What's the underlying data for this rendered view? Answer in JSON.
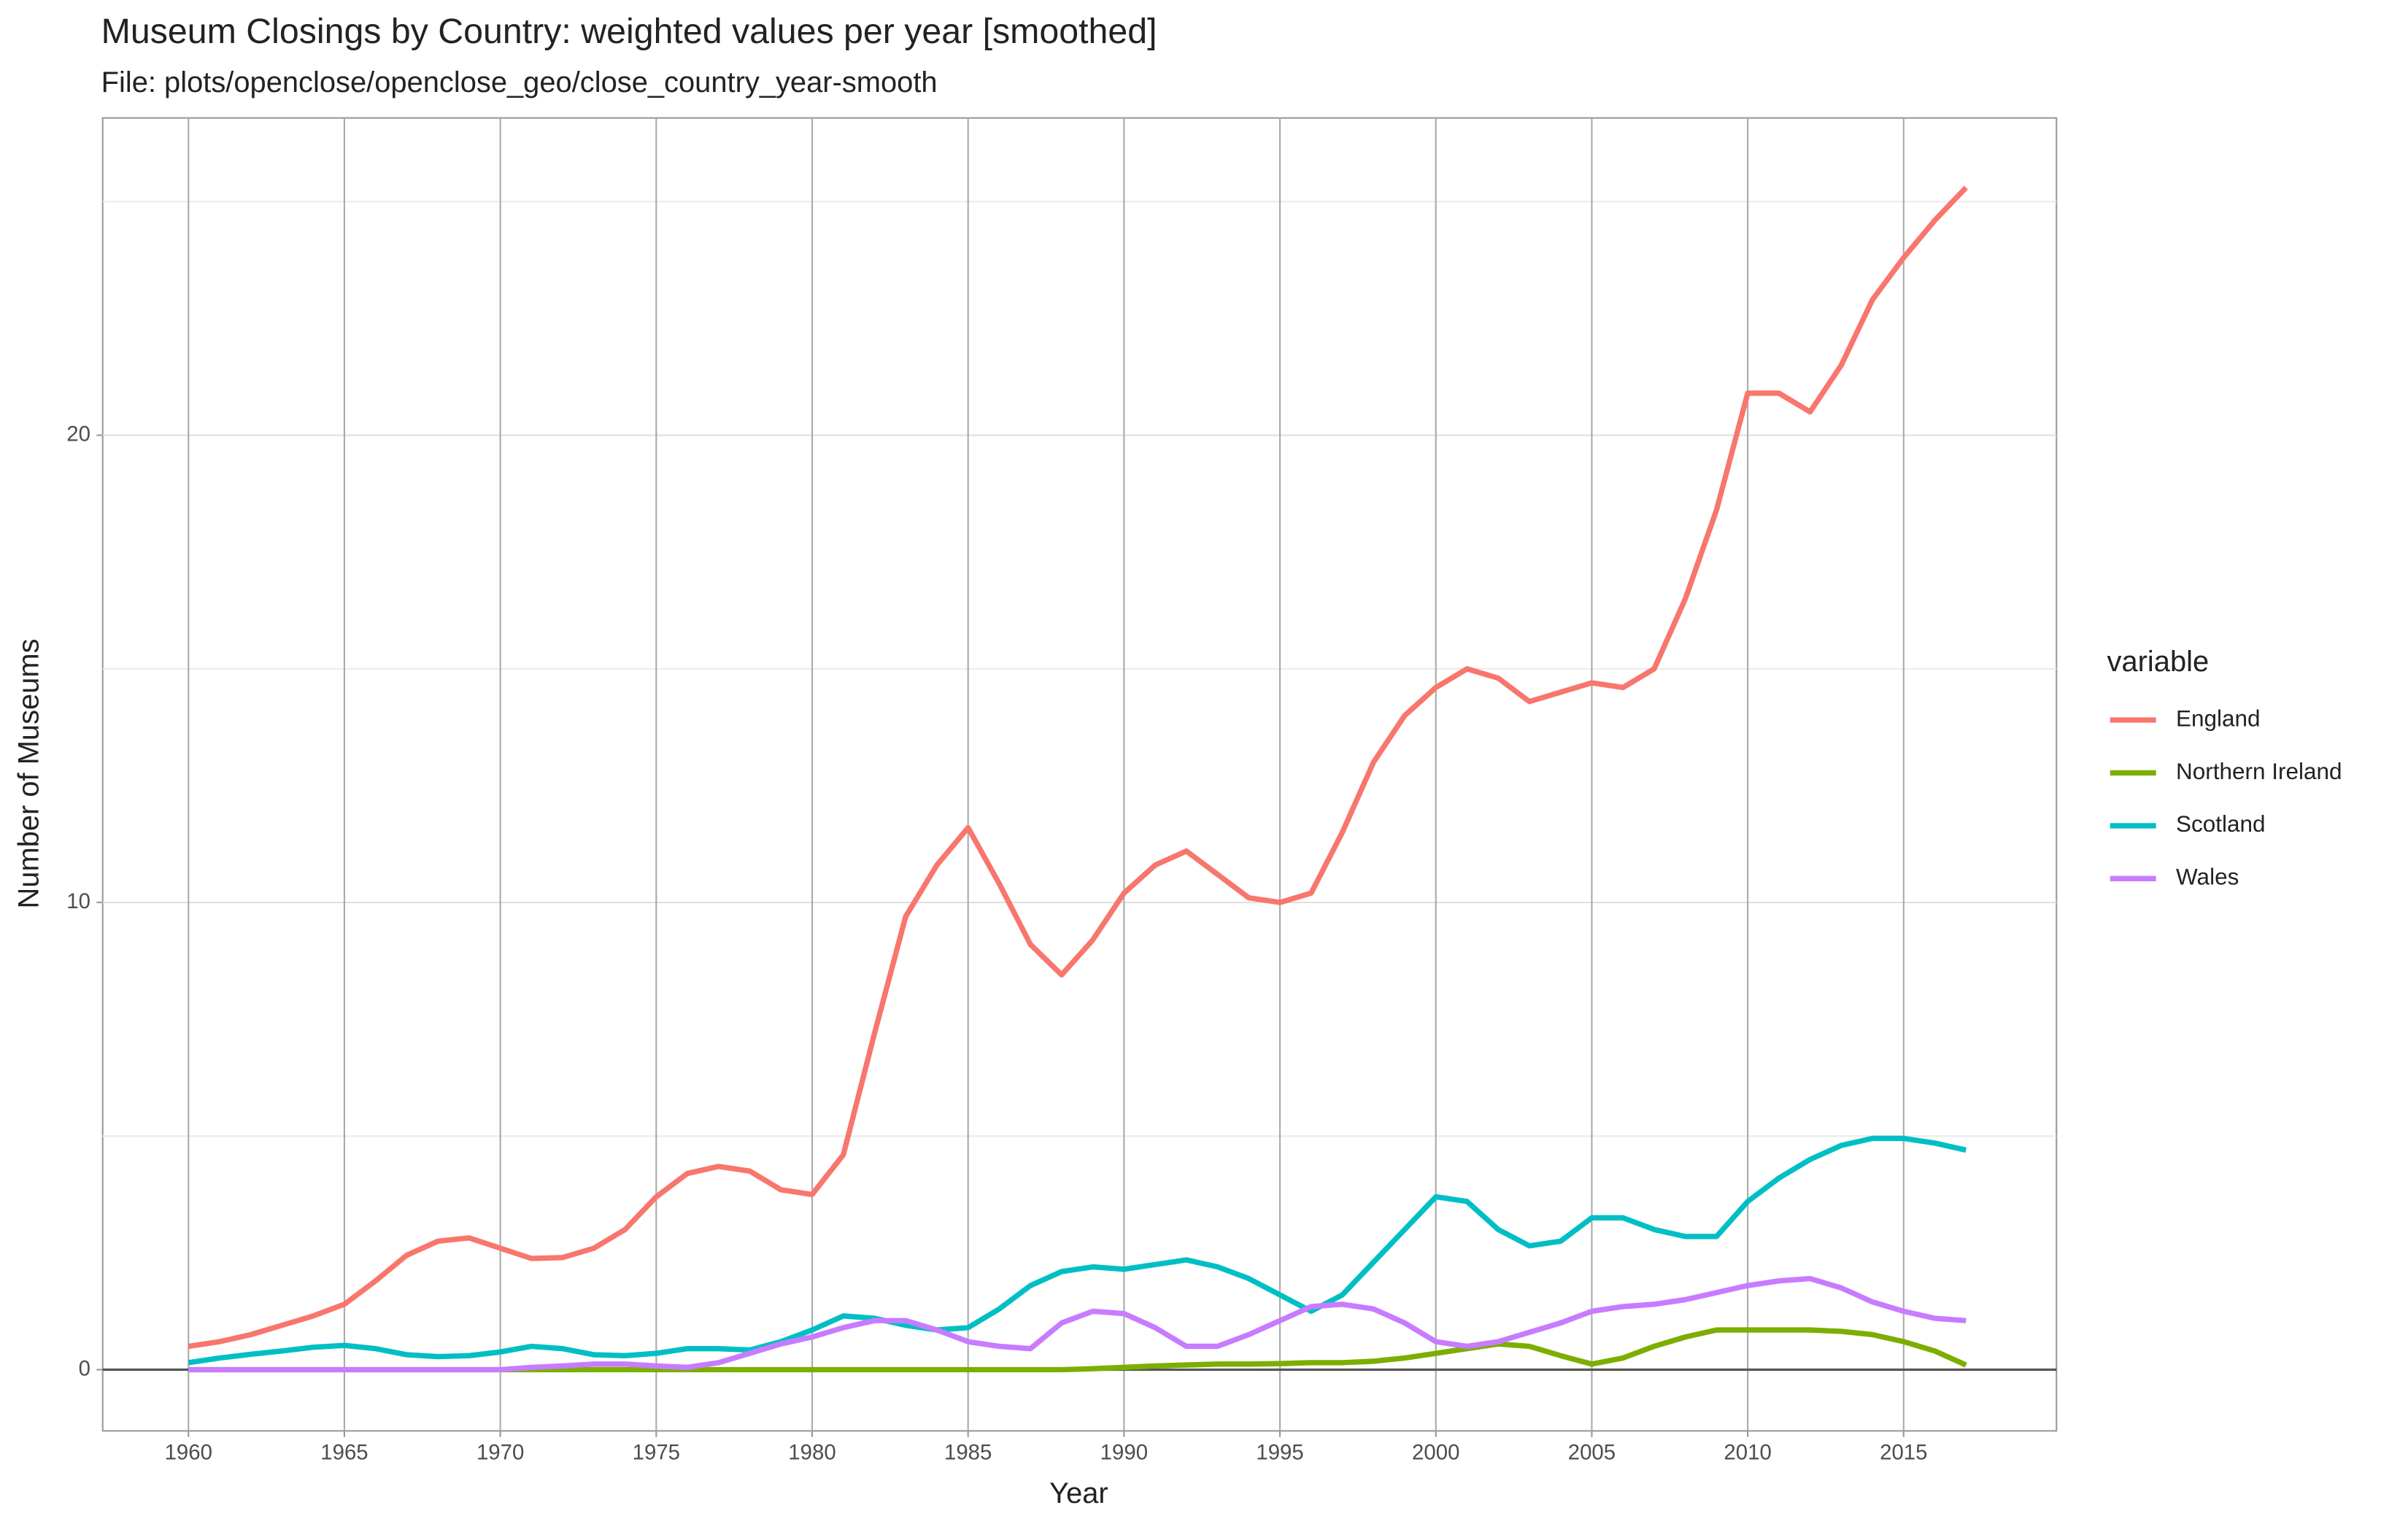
{
  "chart_data": {
    "type": "line",
    "title": "Museum Closings by Country: weighted values per year [smoothed]",
    "subtitle": "File: plots/openclose/openclose_geo/close_country_year-smooth",
    "x_label": "Year",
    "y_label": "Number of Museums",
    "legend_title": "variable",
    "legend_position": "right",
    "grid": true,
    "x": [
      1960,
      1961,
      1962,
      1963,
      1964,
      1965,
      1966,
      1967,
      1968,
      1969,
      1970,
      1971,
      1972,
      1973,
      1974,
      1975,
      1976,
      1977,
      1978,
      1979,
      1980,
      1981,
      1982,
      1983,
      1984,
      1985,
      1986,
      1987,
      1988,
      1989,
      1990,
      1991,
      1992,
      1993,
      1994,
      1995,
      1996,
      1997,
      1998,
      1999,
      2000,
      2001,
      2002,
      2003,
      2004,
      2005,
      2006,
      2007,
      2008,
      2009,
      2010,
      2011,
      2012,
      2013,
      2014,
      2015,
      2016,
      2017
    ],
    "xlim": [
      1957.25,
      2019.9
    ],
    "xticks": [
      1960,
      1965,
      1970,
      1975,
      1980,
      1985,
      1990,
      1995,
      2000,
      2005,
      2010,
      2015
    ],
    "ylim": [
      -1.31,
      26.79
    ],
    "yticks": [
      0,
      10,
      20
    ],
    "series": [
      {
        "name": "England",
        "color": "#F8766D",
        "values": [
          0.5,
          0.6,
          0.75,
          0.95,
          1.15,
          1.4,
          1.9,
          2.45,
          2.75,
          2.82,
          2.6,
          2.38,
          2.4,
          2.6,
          3.0,
          3.7,
          4.2,
          4.35,
          4.25,
          3.85,
          3.75,
          4.6,
          7.2,
          9.7,
          10.8,
          11.6,
          10.4,
          9.1,
          8.45,
          9.2,
          10.2,
          10.8,
          11.1,
          10.6,
          10.1,
          10.0,
          10.2,
          11.5,
          13.0,
          14.0,
          14.6,
          15.0,
          14.8,
          14.3,
          14.5,
          14.7,
          14.6,
          15.0,
          16.5,
          18.4,
          20.9,
          20.9,
          20.5,
          21.5,
          22.9,
          23.8,
          24.6,
          25.3
        ]
      },
      {
        "name": "Northern Ireland",
        "color": "#7CAE00",
        "values": [
          0,
          0,
          0,
          0,
          0,
          0,
          0,
          0,
          0,
          0,
          0,
          0,
          0,
          0,
          0,
          0,
          0,
          0,
          0,
          0,
          0,
          0,
          0,
          0,
          0,
          0,
          0,
          0,
          0,
          0.02,
          0.05,
          0.08,
          0.1,
          0.12,
          0.12,
          0.13,
          0.15,
          0.15,
          0.18,
          0.25,
          0.35,
          0.45,
          0.55,
          0.5,
          0.3,
          0.12,
          0.25,
          0.5,
          0.7,
          0.85,
          0.85,
          0.85,
          0.85,
          0.82,
          0.75,
          0.6,
          0.4,
          0.1
        ]
      },
      {
        "name": "Scotland",
        "color": "#00BFC4",
        "values": [
          0.15,
          0.25,
          0.33,
          0.4,
          0.48,
          0.52,
          0.45,
          0.32,
          0.28,
          0.3,
          0.38,
          0.5,
          0.45,
          0.32,
          0.3,
          0.35,
          0.45,
          0.45,
          0.42,
          0.6,
          0.85,
          1.15,
          1.1,
          0.95,
          0.85,
          0.9,
          1.3,
          1.8,
          2.1,
          2.2,
          2.15,
          2.25,
          2.35,
          2.2,
          1.95,
          1.6,
          1.25,
          1.6,
          2.3,
          3.0,
          3.7,
          3.6,
          3.0,
          2.65,
          2.75,
          3.25,
          3.25,
          3.0,
          2.85,
          2.85,
          3.6,
          4.1,
          4.5,
          4.8,
          4.95,
          4.95,
          4.85,
          4.7
        ]
      },
      {
        "name": "Wales",
        "color": "#C77CFF",
        "values": [
          0,
          0,
          0,
          0,
          0,
          0,
          0,
          0,
          0,
          0,
          0,
          0.05,
          0.08,
          0.12,
          0.12,
          0.08,
          0.05,
          0.15,
          0.35,
          0.55,
          0.7,
          0.9,
          1.05,
          1.05,
          0.85,
          0.6,
          0.5,
          0.45,
          1.0,
          1.25,
          1.2,
          0.9,
          0.5,
          0.5,
          0.75,
          1.05,
          1.35,
          1.4,
          1.3,
          1.0,
          0.6,
          0.5,
          0.6,
          0.8,
          1.0,
          1.25,
          1.35,
          1.4,
          1.5,
          1.65,
          1.8,
          1.9,
          1.95,
          1.75,
          1.45,
          1.25,
          1.1,
          1.05
        ]
      }
    ]
  }
}
